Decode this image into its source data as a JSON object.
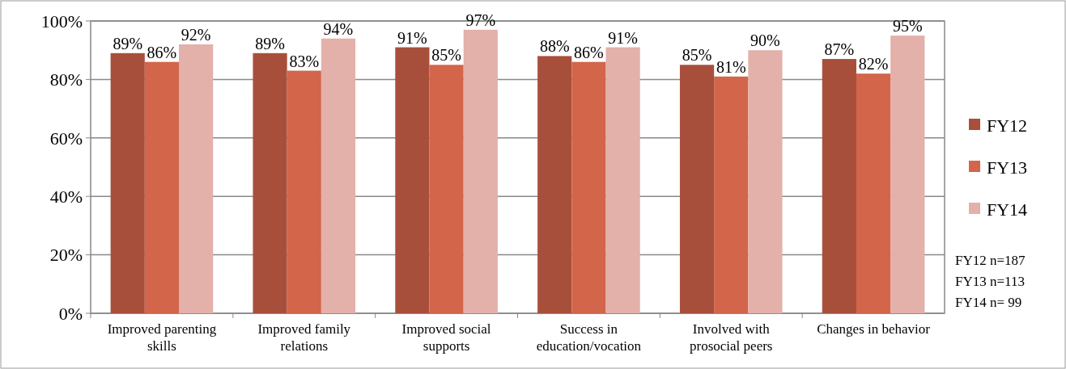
{
  "chart_data": {
    "type": "bar",
    "categories": [
      "Improved parenting skills",
      "Improved family relations",
      "Improved social supports",
      "Success in education/vocation",
      "Involved with prosocial peers",
      "Changes in behavior"
    ],
    "series": [
      {
        "name": "FY12",
        "color": "#a84f3c",
        "values": [
          89,
          89,
          91,
          88,
          85,
          87
        ],
        "value_labels": [
          "89%",
          "89%",
          "91%",
          "88%",
          "85%",
          "87%"
        ]
      },
      {
        "name": "FY13",
        "color": "#d2654a",
        "values": [
          86,
          83,
          85,
          86,
          81,
          82
        ],
        "value_labels": [
          "86%",
          "83%",
          "85%",
          "86%",
          "81%",
          "82%"
        ]
      },
      {
        "name": "FY14",
        "color": "#e3b0aa",
        "values": [
          92,
          94,
          97,
          91,
          90,
          95
        ],
        "value_labels": [
          "92%",
          "94%",
          "97%",
          "91%",
          "90%",
          "95%"
        ]
      }
    ],
    "ylim": [
      0,
      100
    ],
    "yticks": [
      {
        "value": 0,
        "label": "0%"
      },
      {
        "value": 20,
        "label": "20%"
      },
      {
        "value": 40,
        "label": "40%"
      },
      {
        "value": 60,
        "label": "60%"
      },
      {
        "value": 80,
        "label": "80%"
      },
      {
        "value": 100,
        "label": "100%"
      }
    ],
    "grid": "y",
    "legend": "right",
    "annotations": [
      "FY12 n=187",
      "FY13 n=113",
      "FY14 n= 99"
    ]
  }
}
